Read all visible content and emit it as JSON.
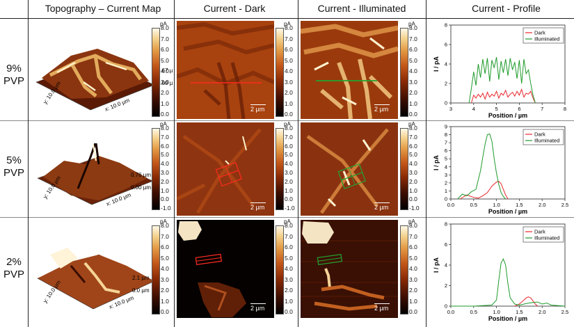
{
  "headers": {
    "col1": "Topography – Current Map",
    "col2": "Current - Dark",
    "col3": "Current - Illuminated",
    "col4": "Current - Profile"
  },
  "rows": [
    {
      "label_pct": "9%",
      "label_unit": "PVP",
      "z_top": "0.67 µm",
      "z_bottom": "0.00 µm"
    },
    {
      "label_pct": "5%",
      "label_unit": "PVP",
      "z_top": "0.76 µm",
      "z_bottom": "0.00 µm"
    },
    {
      "label_pct": "2%",
      "label_unit": "PVP",
      "z_top": "2.1 µm",
      "z_bottom": "0.0 µm"
    }
  ],
  "topo_axes": {
    "y": "y: 10.0 µm",
    "x": "x: 10.0 µm"
  },
  "colorbar": {
    "unit": "pA",
    "ticks": [
      "8.0",
      "7.0",
      "6.0",
      "5.0",
      "4.0",
      "3.0",
      "2.0",
      "1.0",
      "0.0"
    ],
    "ticks_extended": [
      "8.0",
      "7.0",
      "6.0",
      "5.0",
      "4.0",
      "3.0",
      "2.0",
      "1.0",
      "0.0",
      "-1.0"
    ]
  },
  "scalebar": "2 µm",
  "colors": {
    "dark": "#e8262b",
    "illuminated": "#1e9a2a"
  },
  "chart_data": [
    {
      "type": "line",
      "ylabel": "I / pA",
      "xlabel": "Position / µm",
      "xlim": [
        3,
        8
      ],
      "ylim": [
        0,
        8
      ],
      "xticks": [
        "3",
        "4",
        "5",
        "6",
        "7",
        "8"
      ],
      "yticks": [
        "0",
        "2",
        "4",
        "6",
        "8"
      ],
      "legend": "top-right",
      "series": [
        {
          "name": "Dark",
          "color": "#e8262b",
          "x": [
            3.9,
            4.0,
            4.1,
            4.2,
            4.3,
            4.4,
            4.5,
            4.6,
            4.7,
            4.8,
            4.9,
            5.0,
            5.1,
            5.2,
            5.3,
            5.4,
            5.5,
            5.6,
            5.7,
            5.8,
            5.9,
            6.0,
            6.1,
            6.2,
            6.3,
            6.4,
            6.5,
            6.6,
            6.7
          ],
          "y": [
            0,
            0.8,
            0.5,
            0.9,
            0.6,
            1.0,
            0.4,
            1.1,
            0.6,
            0.9,
            0.7,
            1.2,
            0.5,
            1.0,
            0.8,
            1.3,
            0.6,
            0.9,
            1.1,
            0.7,
            1.2,
            0.8,
            1.4,
            0.6,
            1.0,
            0.9,
            1.2,
            0.5,
            0
          ]
        },
        {
          "name": "Illuminated",
          "color": "#1e9a2a",
          "x": [
            3.8,
            3.9,
            4.0,
            4.1,
            4.2,
            4.3,
            4.4,
            4.5,
            4.6,
            4.7,
            4.8,
            4.9,
            5.0,
            5.1,
            5.2,
            5.3,
            5.4,
            5.5,
            5.6,
            5.7,
            5.8,
            5.9,
            6.0,
            6.1,
            6.2,
            6.3,
            6.4,
            6.5,
            6.6,
            6.7
          ],
          "y": [
            0,
            1.5,
            3.2,
            1.8,
            4.0,
            2.6,
            4.5,
            3.0,
            4.6,
            2.2,
            4.4,
            3.6,
            4.7,
            2.4,
            4.3,
            3.1,
            4.5,
            2.8,
            4.6,
            3.4,
            4.2,
            2.5,
            4.4,
            2.0,
            4.5,
            3.0,
            3.4,
            2.0,
            0.8,
            0
          ]
        }
      ]
    },
    {
      "type": "line",
      "ylabel": "I / pA",
      "xlabel": "Position / µm",
      "xlim": [
        0,
        2.5
      ],
      "ylim": [
        0,
        9
      ],
      "xticks": [
        "0.0",
        "0.5",
        "1.0",
        "1.5",
        "2.0",
        "2.5"
      ],
      "yticks": [
        "0",
        "1",
        "2",
        "3",
        "4",
        "5",
        "6",
        "7",
        "8",
        "9"
      ],
      "legend": "top-right",
      "series": [
        {
          "name": "Dark",
          "color": "#e8262b",
          "x": [
            0.2,
            0.35,
            0.5,
            0.6,
            0.7,
            0.8,
            0.9,
            1.0,
            1.05,
            1.1,
            1.15,
            1.2,
            1.25
          ],
          "y": [
            0,
            0.5,
            0.2,
            0.1,
            0.4,
            0.8,
            1.6,
            2.1,
            2.2,
            1.9,
            1.2,
            0.5,
            0
          ]
        },
        {
          "name": "Illuminated",
          "color": "#1e9a2a",
          "x": [
            0.15,
            0.25,
            0.35,
            0.45,
            0.55,
            0.65,
            0.7,
            0.75,
            0.8,
            0.85,
            0.9,
            0.95,
            1.0,
            1.05,
            1.1,
            1.15,
            1.2
          ],
          "y": [
            0,
            0.6,
            0.4,
            0.9,
            1.2,
            3.5,
            5.2,
            6.8,
            8.0,
            8.1,
            7.2,
            5.0,
            3.2,
            1.8,
            0.8,
            0.3,
            0
          ]
        }
      ]
    },
    {
      "type": "line",
      "ylabel": "I / pA",
      "xlabel": "Position / µm",
      "xlim": [
        0,
        2.5
      ],
      "ylim": [
        0,
        8
      ],
      "xticks": [
        "0.0",
        "0.5",
        "1.0",
        "1.5",
        "2.0",
        "2.5"
      ],
      "yticks": [
        "0",
        "2",
        "4",
        "6",
        "8"
      ],
      "legend": "top-right",
      "series": [
        {
          "name": "Dark",
          "color": "#e8262b",
          "x": [
            1.4,
            1.5,
            1.6,
            1.65,
            1.7,
            1.75,
            1.8,
            1.85,
            1.9
          ],
          "y": [
            0,
            0.2,
            0.6,
            0.8,
            0.9,
            0.8,
            0.5,
            0.2,
            0
          ]
        },
        {
          "name": "Illuminated",
          "color": "#1e9a2a",
          "x": [
            0,
            0.5,
            0.9,
            1.0,
            1.05,
            1.1,
            1.15,
            1.2,
            1.25,
            1.3,
            1.4,
            1.5,
            1.7,
            1.9,
            2.0,
            2.1,
            2.2,
            2.5
          ],
          "y": [
            0,
            0,
            0.1,
            0.6,
            2.5,
            4.2,
            4.6,
            4.0,
            2.2,
            0.8,
            0.2,
            0.1,
            0.3,
            0.4,
            0.2,
            0.3,
            0.1,
            0
          ]
        }
      ]
    }
  ]
}
